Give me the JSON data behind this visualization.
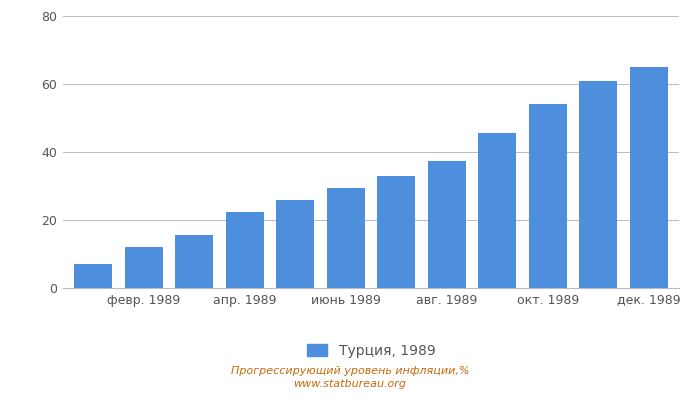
{
  "x_tick_labels": [
    "февр. 1989",
    "апр. 1989",
    "июнь 1989",
    "авг. 1989",
    "окт. 1989",
    "дек. 1989"
  ],
  "x_tick_positions": [
    1,
    3,
    5,
    7,
    9,
    11
  ],
  "values": [
    7.0,
    12.0,
    15.5,
    22.5,
    26.0,
    29.5,
    33.0,
    37.5,
    45.5,
    54.0,
    61.0,
    65.0
  ],
  "bar_color": "#4d8fdd",
  "ylim": [
    0,
    80
  ],
  "yticks": [
    0,
    20,
    40,
    60,
    80
  ],
  "legend_label": "Турция, 1989",
  "footer_line1": "Прогрессирующий уровень инфляции,%",
  "footer_line2": "www.statbureau.org",
  "background_color": "#ffffff",
  "grid_color": "#bbbbbb",
  "footer_color": "#c8690a",
  "tick_color": "#555555",
  "bar_width": 0.75
}
